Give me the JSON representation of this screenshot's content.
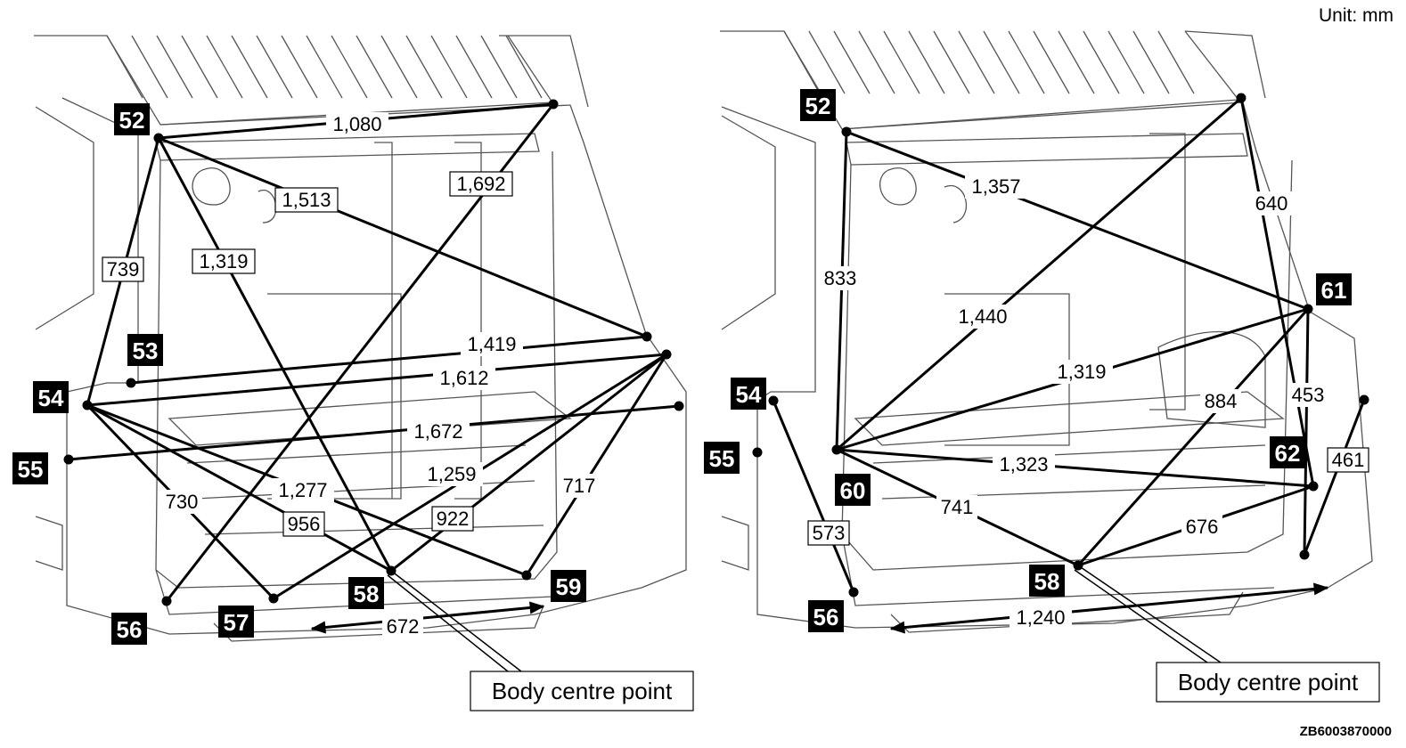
{
  "unit_label": "Unit: mm",
  "reference_code": "ZB6003870000",
  "panels": [
    {
      "name": "left",
      "callout": "Body centre point",
      "points": [
        {
          "id": "52",
          "label": "52"
        },
        {
          "id": "53",
          "label": "53"
        },
        {
          "id": "54",
          "label": "54"
        },
        {
          "id": "55",
          "label": "55"
        },
        {
          "id": "56",
          "label": "56"
        },
        {
          "id": "57",
          "label": "57"
        },
        {
          "id": "58",
          "label": "58"
        },
        {
          "id": "59",
          "label": "59"
        }
      ],
      "dimensions": [
        {
          "value": "1,080",
          "boxed": false
        },
        {
          "value": "1,692",
          "boxed": true
        },
        {
          "value": "1,513",
          "boxed": true
        },
        {
          "value": "739",
          "boxed": true
        },
        {
          "value": "1,319",
          "boxed": true
        },
        {
          "value": "1,419",
          "boxed": false
        },
        {
          "value": "1,612",
          "boxed": false
        },
        {
          "value": "1,672",
          "boxed": false
        },
        {
          "value": "1,259",
          "boxed": false
        },
        {
          "value": "1,277",
          "boxed": false
        },
        {
          "value": "730",
          "boxed": false
        },
        {
          "value": "956",
          "boxed": true
        },
        {
          "value": "922",
          "boxed": true
        },
        {
          "value": "717",
          "boxed": false
        },
        {
          "value": "672",
          "boxed": false
        }
      ]
    },
    {
      "name": "right",
      "callout": "Body centre point",
      "points": [
        {
          "id": "52",
          "label": "52"
        },
        {
          "id": "54",
          "label": "54"
        },
        {
          "id": "55",
          "label": "55"
        },
        {
          "id": "56",
          "label": "56"
        },
        {
          "id": "58",
          "label": "58"
        },
        {
          "id": "60",
          "label": "60"
        },
        {
          "id": "61",
          "label": "61"
        },
        {
          "id": "62",
          "label": "62"
        }
      ],
      "dimensions": [
        {
          "value": "1,357",
          "boxed": false
        },
        {
          "value": "640",
          "boxed": false
        },
        {
          "value": "833",
          "boxed": false
        },
        {
          "value": "1,440",
          "boxed": false
        },
        {
          "value": "1,319",
          "boxed": false
        },
        {
          "value": "884",
          "boxed": false
        },
        {
          "value": "453",
          "boxed": false
        },
        {
          "value": "461",
          "boxed": true
        },
        {
          "value": "1,323",
          "boxed": false
        },
        {
          "value": "741",
          "boxed": false
        },
        {
          "value": "573",
          "boxed": true
        },
        {
          "value": "676",
          "boxed": false
        },
        {
          "value": "1,240",
          "boxed": false
        }
      ]
    }
  ]
}
